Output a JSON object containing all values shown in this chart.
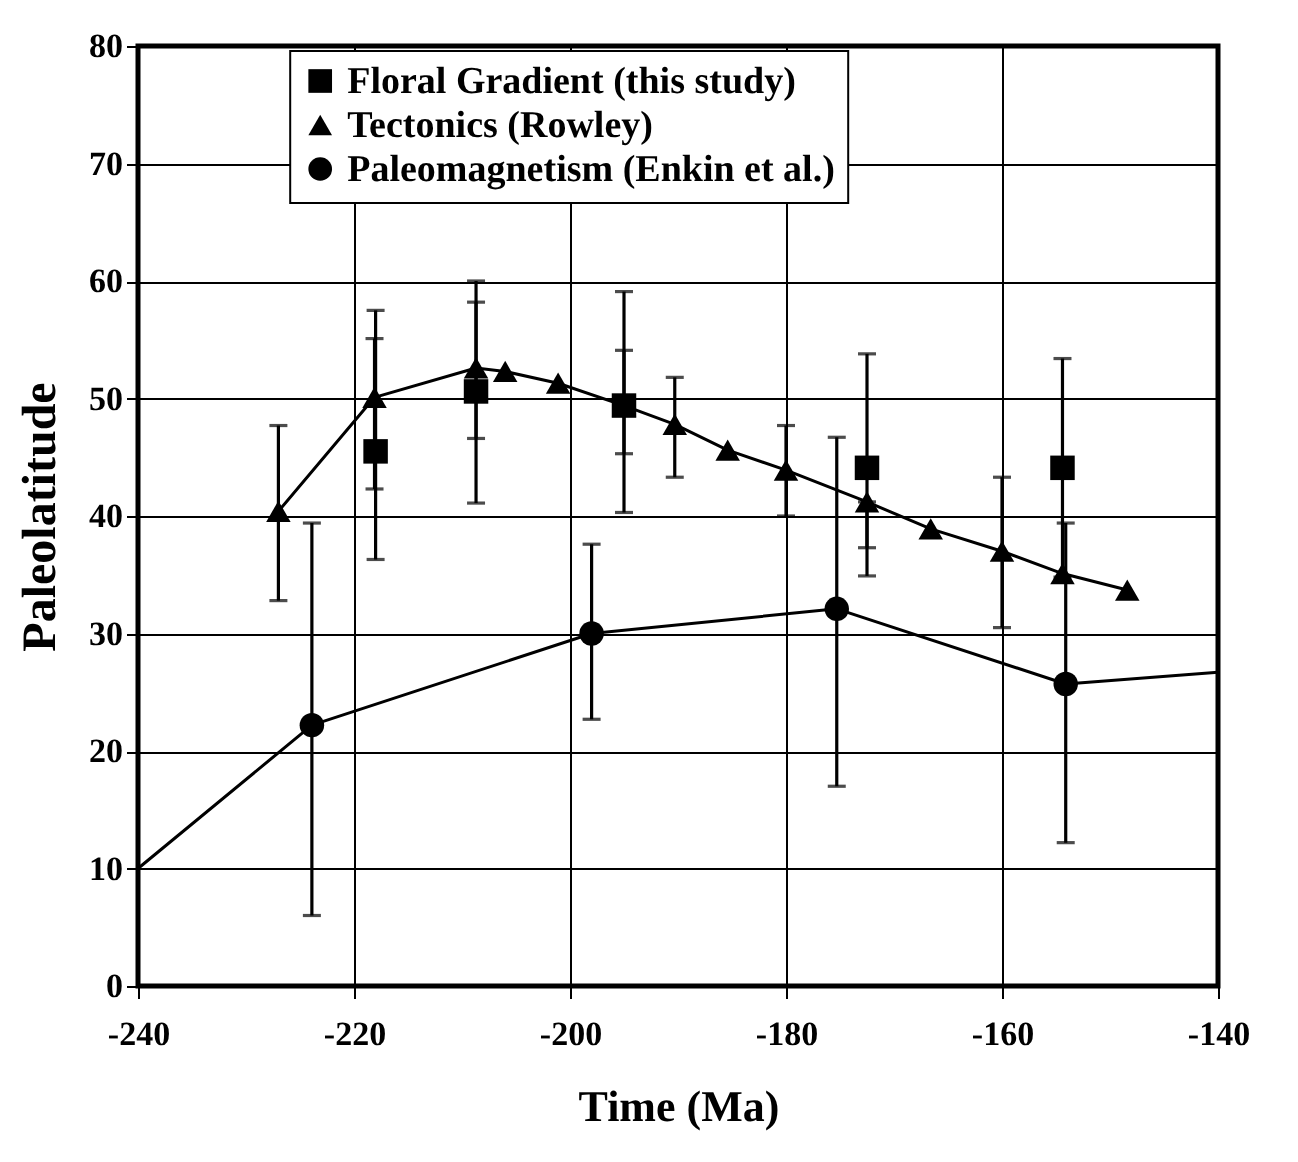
{
  "chart_data": {
    "type": "line",
    "xlabel": "Time (Ma)",
    "ylabel": "Paleolatitude",
    "xlim": [
      -240,
      -140
    ],
    "xticks": [
      -240,
      -220,
      -200,
      -180,
      -160,
      -140
    ],
    "ylim": [
      0,
      80
    ],
    "yticks": [
      0,
      10,
      20,
      30,
      40,
      50,
      60,
      70,
      80
    ],
    "grid": true,
    "legend": "top",
    "line_style": "solid",
    "series": [
      {
        "name": "Floral Gradient (this study)",
        "type": "scatter",
        "marker": "square",
        "color": "#000000",
        "x": [
          -218,
          -208.7,
          -195,
          -172.5,
          -154.4
        ],
        "values": [
          45.5,
          50.6,
          49.4,
          44.1,
          44.1
        ],
        "errors": [
          [
            36.3,
            57.5
          ],
          [
            41.1,
            60
          ],
          [
            40.3,
            59.1
          ],
          [
            34.9,
            53.8
          ],
          [
            34.8,
            53.4
          ]
        ]
      },
      {
        "name": "Tectonics (Rowley)",
        "type": "line",
        "marker": "triangle",
        "color": "#000000",
        "x": [
          -227,
          -218.1,
          -208.7,
          -206,
          -201.1,
          -195,
          -190.3,
          -185.4,
          -180,
          -172.5,
          -166.6,
          -160,
          -154.4,
          -148.4
        ],
        "values": [
          40.4,
          50.1,
          52.6,
          52.3,
          51.3,
          49.4,
          47.8,
          45.6,
          43.9,
          41.2,
          38.9,
          37.0,
          35.1,
          33.7
        ],
        "errors": [
          [
            32.8,
            47.7
          ],
          [
            42.3,
            55.1
          ],
          [
            46.6,
            58.2
          ],
          null,
          null,
          [
            45.3,
            54.1
          ],
          [
            43.3,
            51.8
          ],
          null,
          [
            40,
            47.7
          ],
          [
            37.3,
            41.2
          ],
          null,
          [
            30.5,
            43.3
          ],
          null,
          null
        ]
      },
      {
        "name": "Paleomagnetism (Enkin et al.)",
        "type": "line",
        "marker": "circle",
        "color": "#000000",
        "x": [
          -223.9,
          -198,
          -175.3,
          -154.1
        ],
        "values": [
          22.2,
          30.0,
          32.1,
          25.7
        ],
        "errors": [
          [
            6.0,
            39.4
          ],
          [
            22.7,
            37.6
          ],
          [
            17.0,
            46.7
          ],
          [
            12.2,
            39.4
          ]
        ]
      },
      {
        "type": "line",
        "marker": "none",
        "color": "#000000",
        "x": [
          -240,
          -223.9,
          -190,
          -154.1,
          -140
        ],
        "values": [
          10,
          22.2,
          null,
          25.7,
          26.7
        ]
      }
    ]
  }
}
